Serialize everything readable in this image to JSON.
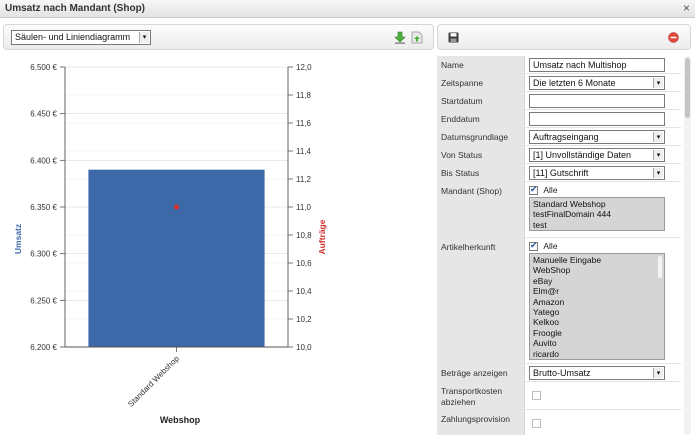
{
  "window": {
    "title": "Umsatz nach Mandant (Shop)",
    "close_glyph": "×"
  },
  "toolbar": {
    "chart_type": "Säulen- und Liniendiagramm"
  },
  "chart_data": {
    "type": "bar",
    "categories": [
      "Standard Webshop"
    ],
    "series": [
      {
        "name": "Umsatz",
        "values": [
          6390
        ],
        "axis": "left",
        "color": "#3d69a8",
        "kind": "bar"
      },
      {
        "name": "Aufträge",
        "values": [
          11.0
        ],
        "axis": "right",
        "color": "#d0312d",
        "kind": "point"
      }
    ],
    "xlabel": "Webshop",
    "ylabel": "Umsatz",
    "y2label": "Aufträge",
    "ylim": [
      6200,
      6500
    ],
    "y2lim": [
      10.0,
      12.0
    ],
    "yticks": [
      "6.500 €",
      "6.450 €",
      "6.400 €",
      "6.350 €",
      "6.300 €",
      "6.250 €",
      "6.200 €"
    ],
    "y2ticks": [
      "12,0",
      "11,8",
      "11,6",
      "11,4",
      "11,2",
      "11,0",
      "10,8",
      "10,6",
      "10,4",
      "10,2",
      "10,0"
    ],
    "grid": true
  },
  "form": {
    "name": {
      "label": "Name",
      "value": "Umsatz nach Multishop"
    },
    "zeitspanne": {
      "label": "Zeitspanne",
      "value": "Die letzten 6 Monate"
    },
    "startdatum": {
      "label": "Startdatum",
      "value": ""
    },
    "enddatum": {
      "label": "Enddatum",
      "value": ""
    },
    "datumsgrundlage": {
      "label": "Datumsgrundlage",
      "value": "Auftragseingang"
    },
    "von_status": {
      "label": "Von Status",
      "value": "[1] Unvollständige Daten"
    },
    "bis_status": {
      "label": "Bis Status",
      "value": "[11] Gutschrift"
    },
    "mandant": {
      "label": "Mandant (Shop)",
      "all_label": "Alle",
      "options": [
        "Standard Webshop",
        "testFinalDomain 444",
        "test"
      ]
    },
    "artikelherkunft": {
      "label": "Artikelherkunft",
      "all_label": "Alle",
      "options": [
        "Manuelle Eingabe",
        "WebShop",
        "eBay",
        "Elm@r",
        "Amazon",
        "Yatego",
        "Kelkoo",
        "Froogle",
        "Auvito",
        "ricardo"
      ]
    },
    "betraege": {
      "label": "Beträge anzeigen",
      "value": "Brutto-Umsatz"
    },
    "transportkosten": {
      "label": "Transportkosten abziehen"
    },
    "zahlungsprovision": {
      "label": "Zahlungsprovision"
    }
  }
}
